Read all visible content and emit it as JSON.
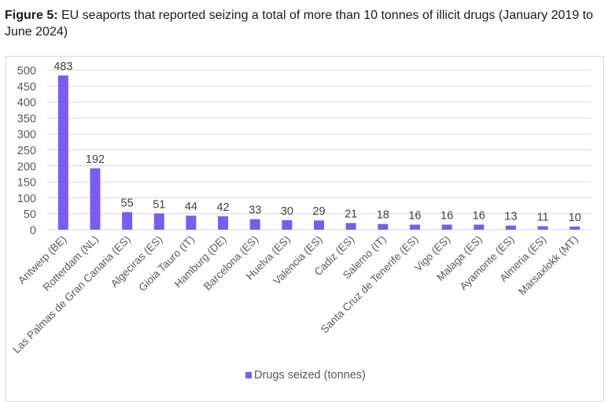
{
  "figure": {
    "label": "Figure 5:",
    "caption": " EU seaports that reported seizing a total of more than 10 tonnes of illicit drugs (January 2019 to June 2024)"
  },
  "colors": {
    "bar": "#7b5cf0",
    "grid": "#d9d9d9",
    "text": "#404040"
  },
  "chart_data": {
    "type": "bar",
    "title": "EU seaports that reported seizing a total of more than 10 tonnes of illicit drugs (January 2019 to June 2024)",
    "xlabel": "",
    "ylabel": "",
    "ylim": [
      0,
      500
    ],
    "yticks": [
      0,
      50,
      100,
      150,
      200,
      250,
      300,
      350,
      400,
      450,
      500
    ],
    "grid": true,
    "legend_position": "bottom",
    "categories": [
      "Antwerp (BE)",
      "Rotterdam (NL)",
      "Las Palmas de Gran Canaria (ES)",
      "Algeciras (ES)",
      "Gioia Tauro (IT)",
      "Hamburg (DE)",
      "Barcelona (ES)",
      "Huelva (ES)",
      "Valencia (ES)",
      "Cadiz (ES)",
      "Salerno (IT)",
      "Santa Cruz de Tenerife (ES)",
      "Vigo (ES)",
      "Malaga (ES)",
      "Ayamonte (ES)",
      "Almeria (ES)",
      "Marsaxlokk (MT)"
    ],
    "series": [
      {
        "name": "Drugs seized (tonnes)",
        "values": [
          483,
          192,
          55,
          51,
          44,
          42,
          33,
          30,
          29,
          21,
          18,
          16,
          16,
          16,
          13,
          11,
          10
        ]
      }
    ]
  }
}
